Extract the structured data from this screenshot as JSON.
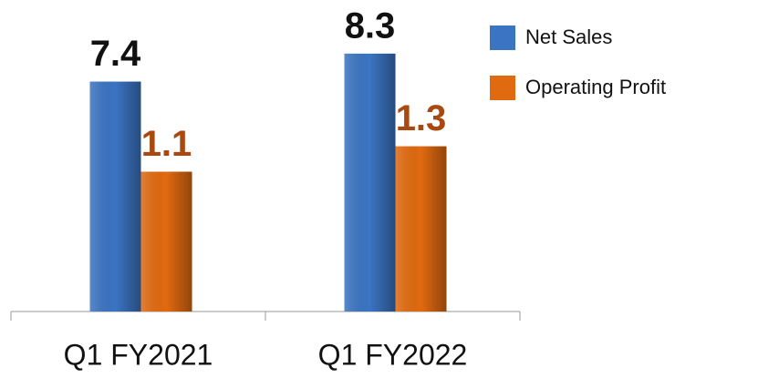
{
  "chart_data": {
    "type": "bar",
    "categories": [
      "Q1 FY2021",
      "Q1 FY2022"
    ],
    "series": [
      {
        "name": "Net Sales",
        "color": "#3b74c2",
        "values": [
          7.4,
          8.3
        ]
      },
      {
        "name": "Operating Profit",
        "color": "#e06a10",
        "values": [
          1.1,
          1.3
        ],
        "axis": "y2"
      }
    ],
    "ylim": [
      0,
      9
    ],
    "y2lim": [
      0,
      2.2
    ],
    "legend": "top-right"
  }
}
